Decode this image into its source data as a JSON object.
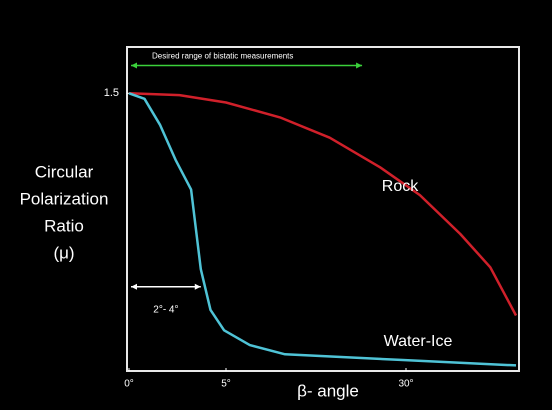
{
  "chart_data": {
    "type": "line",
    "ylabel": [
      "Circular",
      "Polarization",
      "Ratio",
      "(μ)"
    ],
    "xlabel": "β- angle",
    "xlim": [
      0,
      45
    ],
    "xticks": [
      {
        "value": 0,
        "label": "0°"
      },
      {
        "value": 5,
        "label": "5°"
      },
      {
        "value": 30,
        "label": "30°"
      }
    ],
    "ylim": [
      0,
      1.75
    ],
    "yticks": [
      1.5
    ],
    "series": [
      {
        "name": "Rock",
        "color": "#d0202a",
        "x": [
          0,
          2.6,
          5,
          12.5,
          19.4,
          26.4,
          31.9,
          37.4,
          41.5,
          45
        ],
        "values": [
          1.5,
          1.49,
          1.45,
          1.37,
          1.26,
          1.1,
          0.95,
          0.74,
          0.56,
          0.3
        ]
      },
      {
        "name": "Water-Ice",
        "color": "#4fc3d6",
        "x": [
          0,
          0.8,
          1.6,
          2.4,
          3.2,
          3.7,
          4.2,
          4.9,
          8.3,
          13.2,
          29.2,
          45
        ],
        "values": [
          1.5,
          1.47,
          1.33,
          1.14,
          0.98,
          0.55,
          0.33,
          0.22,
          0.14,
          0.09,
          0.06,
          0.03
        ]
      }
    ],
    "annotations": [
      {
        "text": "Desired range of bistatic measurements",
        "x_range": [
          0,
          23.9
        ],
        "y": 1.65,
        "color": "#3bd13b"
      },
      {
        "text": "2°- 4°",
        "x_range": [
          0,
          3.7
        ],
        "y": 0.455,
        "color": "#ffffff"
      }
    ]
  }
}
